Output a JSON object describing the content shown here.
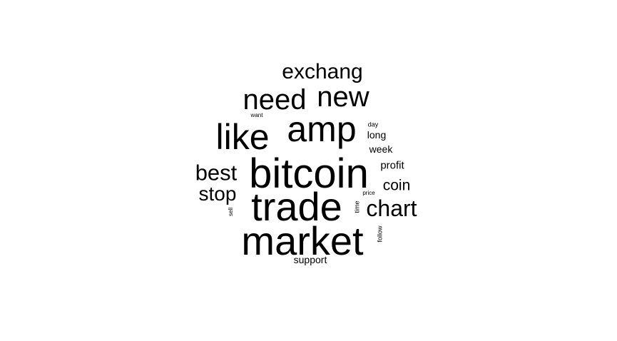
{
  "word_cloud": {
    "words": {
      "bitcoin": "bitcoin",
      "trade": "trade",
      "market": "market",
      "amp": "amp",
      "like": "like",
      "new": "new",
      "need": "need",
      "exchang": "exchang",
      "best": "best",
      "stop": "stop",
      "chart": "chart",
      "coin": "coin",
      "profit": "profit",
      "week": "week",
      "long": "long",
      "day": "day",
      "want": "want",
      "price": "price",
      "support": "support",
      "sell": "sell",
      "time": "time",
      "follow": "follow"
    },
    "text_color": "#000000",
    "background": "#ffffff"
  }
}
